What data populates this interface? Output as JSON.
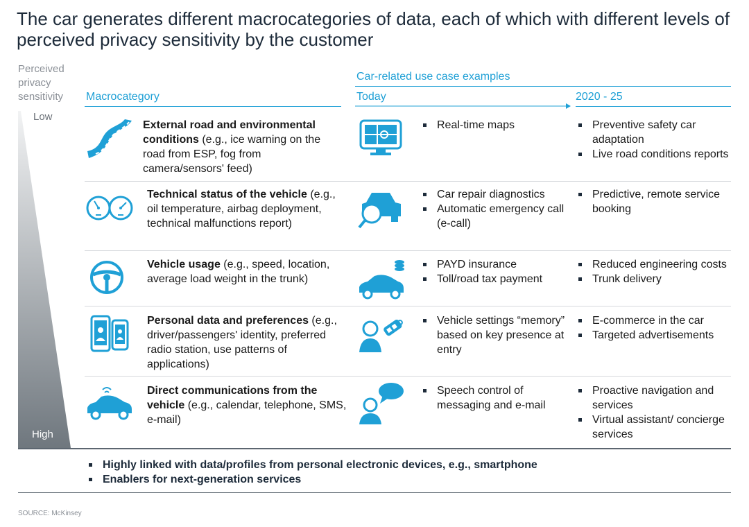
{
  "title": "The car generates different macrocategories of data, each of which with different levels of perceived privacy sensitivity by the customer",
  "axis": {
    "label": "Perceived privacy sensitivity",
    "low": "Low",
    "high": "High"
  },
  "headers": {
    "macrocategory": "Macrocategory",
    "use_cases": "Car-related use case examples",
    "today": "Today",
    "future": "2020 - 25"
  },
  "rows": [
    {
      "bold": "External road and environmental conditions",
      "rest": " (e.g., ice warning on the road from ESP, fog from camera/sensors' feed)",
      "cat_icon": "road-icon",
      "use_icon": "navigation-screen-icon",
      "today": [
        "Real-time maps"
      ],
      "future": [
        "Preventive safety car adaptation",
        "Live road conditions reports"
      ]
    },
    {
      "bold": "Technical status of the vehicle",
      "rest": " (e.g., oil temperature, airbag deployment, technical malfunctions report)",
      "cat_icon": "gauges-icon",
      "use_icon": "car-diagnostics-icon",
      "today": [
        "Car repair diagnostics",
        "Automatic emergency call (e-call)"
      ],
      "future": [
        "Predictive, remote service booking"
      ]
    },
    {
      "bold": "Vehicle usage",
      "rest": " (e.g., speed, location, average load weight in the trunk)",
      "cat_icon": "steering-wheel-icon",
      "use_icon": "car-coins-icon",
      "today": [
        "PAYD insurance",
        "Toll/road tax payment"
      ],
      "future": [
        "Reduced engineering costs",
        "Trunk delivery"
      ]
    },
    {
      "bold": "Personal data and preferences",
      "rest": " (e.g., driver/passengers' identity, preferred radio station, use patterns of applications)",
      "cat_icon": "phones-icon",
      "use_icon": "person-key-icon",
      "today": [
        "Vehicle settings “memory” based on key presence at entry"
      ],
      "future": [
        "E-commerce in the car",
        "Targeted advertisements"
      ]
    },
    {
      "bold": "Direct communications from the vehicle",
      "rest": " (e.g., calendar, telephone, SMS, e-mail)",
      "cat_icon": "connected-car-icon",
      "use_icon": "person-speech-icon",
      "today": [
        "Speech control of messaging and e-mail"
      ],
      "future": [
        "Proactive navigation and services",
        "Virtual assistant/ concierge services"
      ]
    }
  ],
  "bottom_notes": [
    "Highly linked with data/profiles from personal electronic devices, e.g., smartphone",
    "Enablers for next-generation services"
  ],
  "source": "SOURCE: McKinsey",
  "colors": {
    "accent": "#1fa0d6",
    "title": "#1d2b3a",
    "muted": "#8a8f96"
  }
}
